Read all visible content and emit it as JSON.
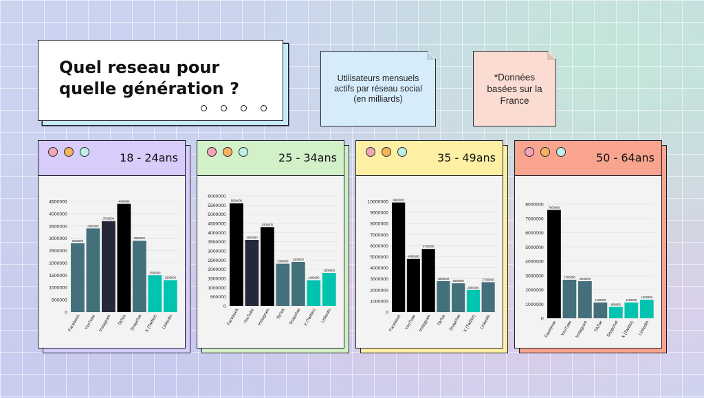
{
  "title": "Quel reseau pour quelle génération ?",
  "note_left": "Utilisateurs mensuels actifs par réseau social (en milliards)",
  "note_right": "*Données basées sur la France",
  "colors": {
    "facebook": "#44707b",
    "youtube_dark": "#252838",
    "black": "#000000",
    "teal": "#00c4b0",
    "header_purple": "#d8ccfb",
    "header_green": "#d3f1c9",
    "header_yellow": "#fdf0a4",
    "header_red": "#f8a48f",
    "dot_pink": "#f4a5b5",
    "dot_orange": "#f5b35c",
    "dot_mint": "#bff0e4"
  },
  "chart_data": [
    {
      "type": "bar",
      "title": "18 - 24ans",
      "categories": [
        "Facebook",
        "YouTube",
        "Instagram",
        "TikTok",
        "Snapchat",
        "X (Twitter)",
        "LinkedIn"
      ],
      "values": [
        2800000,
        3400000,
        3700000,
        4400000,
        2900000,
        1500000,
        1300000
      ],
      "value_labels": [
        "2800000",
        "3400000",
        "3700000",
        "4400000",
        "2900000",
        "1500000",
        "1300000"
      ],
      "colors": [
        "#44707b",
        "#44707b",
        "#252838",
        "#000000",
        "#44707b",
        "#00c4b0",
        "#00c4b0"
      ],
      "yticks": [
        "0",
        "500000",
        "1000000",
        "1500000",
        "2000000",
        "2500000",
        "3000000",
        "3500000",
        "4000000",
        "4500000"
      ],
      "ylim": [
        0,
        4500000
      ],
      "header_color": "#d8ccfb",
      "shadow_color": "#d8ccfb",
      "grid": true
    },
    {
      "type": "bar",
      "title": "25 - 34ans",
      "categories": [
        "Facebook",
        "YouTube",
        "Instagram",
        "TikTok",
        "Snapchat",
        "X (Twitter)",
        "LinkedIn"
      ],
      "values": [
        5600000,
        3600000,
        4300000,
        2300000,
        2400000,
        1400000,
        1800000
      ],
      "value_labels": [
        "5600000",
        "3600000",
        "4300000",
        "2300000",
        "2400000",
        "1400000",
        "1800000"
      ],
      "colors": [
        "#000000",
        "#252838",
        "#000000",
        "#44707b",
        "#44707b",
        "#00c4b0",
        "#00c4b0"
      ],
      "yticks": [
        "0",
        "500000",
        "1000000",
        "1500000",
        "2000000",
        "2500000",
        "3000000",
        "3500000",
        "4000000",
        "4500000",
        "5000000",
        "5500000",
        "6000000"
      ],
      "ylim": [
        0,
        6000000
      ],
      "header_color": "#d3f1c9",
      "shadow_color": "#d3f1c9",
      "grid": true
    },
    {
      "type": "bar",
      "title": "35 - 49ans",
      "categories": [
        "Facebook",
        "YouTube",
        "Instagram",
        "TikTok",
        "Snapchat",
        "X (Twitter)",
        "LinkedIn"
      ],
      "values": [
        9900000,
        4800000,
        5700000,
        2800000,
        2600000,
        2000000,
        2700000
      ],
      "value_labels": [
        "9900000",
        "4800000",
        "5700000",
        "2800000",
        "2600000",
        "2000000",
        "2700000"
      ],
      "colors": [
        "#000000",
        "#000000",
        "#000000",
        "#44707b",
        "#44707b",
        "#00c4b0",
        "#44707b"
      ],
      "yticks": [
        "0",
        "1000000",
        "2000000",
        "3000000",
        "4000000",
        "5000000",
        "6000000",
        "7000000",
        "8000000",
        "9000000",
        "10000000"
      ],
      "ylim": [
        0,
        10000000
      ],
      "header_color": "#fdf0a4",
      "shadow_color": "#fdf0a4",
      "grid": true
    },
    {
      "type": "bar",
      "title": "50 - 64ans",
      "categories": [
        "Facebook",
        "YouTube",
        "Instagram",
        "TikTok",
        "Snapchat",
        "X (Twitter)",
        "LinkedIn"
      ],
      "values": [
        7600000,
        2700000,
        2600000,
        1100000,
        800000,
        1100000,
        1300000
      ],
      "value_labels": [
        "7600000",
        "2700000",
        "2600000",
        "1100000",
        "800000",
        "1100000",
        "1300000"
      ],
      "colors": [
        "#000000",
        "#44707b",
        "#44707b",
        "#44707b",
        "#00c4b0",
        "#00c4b0",
        "#00c4b0"
      ],
      "yticks": [
        "0",
        "1000000",
        "2000000",
        "3000000",
        "4000000",
        "5000000",
        "6000000",
        "7000000",
        "8000000"
      ],
      "ylim": [
        0,
        8000000
      ],
      "header_color": "#f8a48f",
      "shadow_color": "#f8a48f",
      "grid": true
    }
  ]
}
